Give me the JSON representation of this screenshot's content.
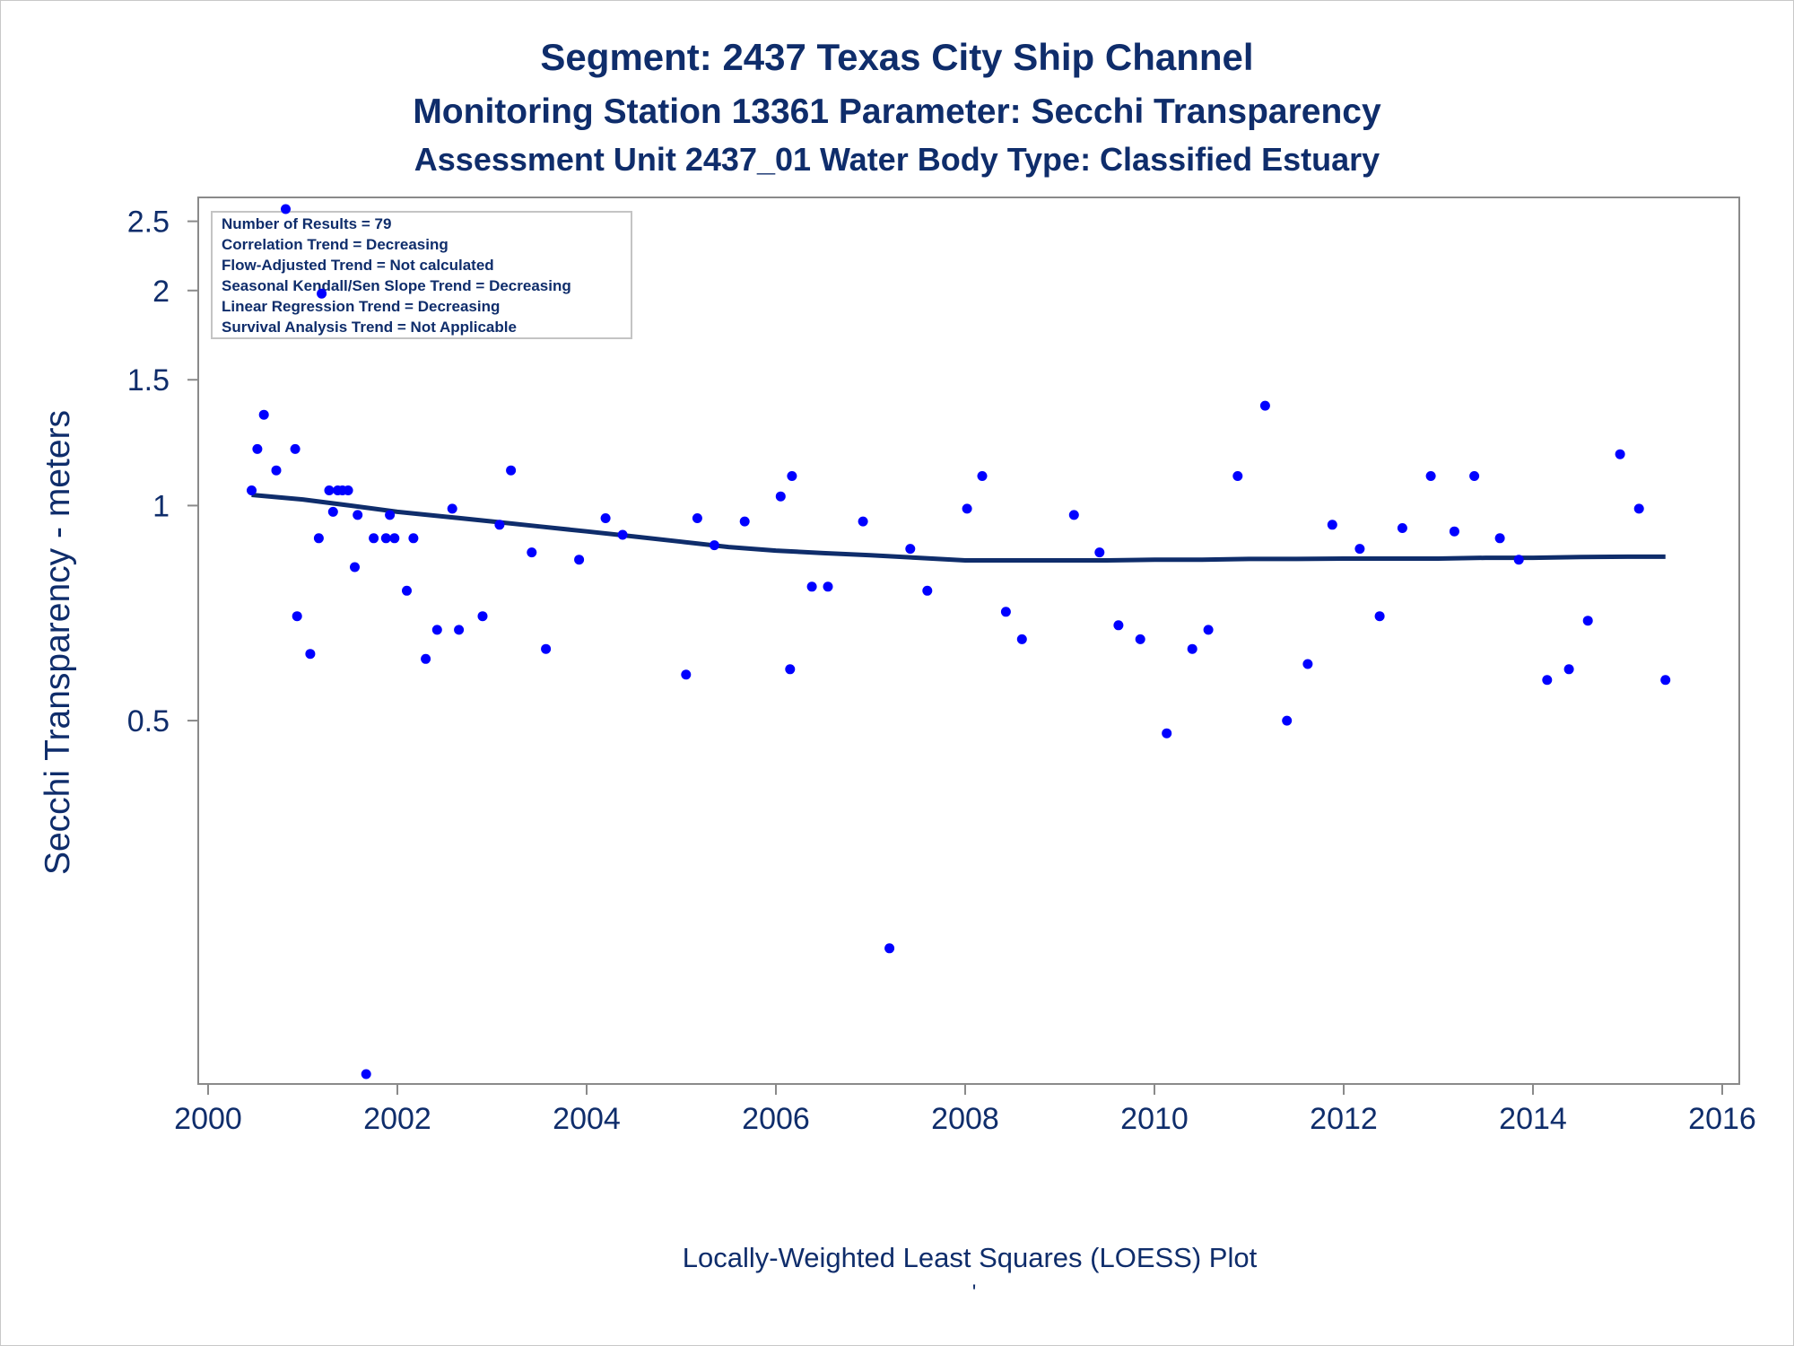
{
  "chart_data": {
    "type": "scatter",
    "title": "Segment: 2437  Texas City Ship Channel",
    "subtitle": "Monitoring Station 13361 Parameter: Secchi Transparency",
    "subtitle2": "Assessment Unit 2437_01   Water Body Type: Classified Estuary",
    "xlabel": "",
    "ylabel": "Secchi Transparency - meters",
    "footnote": "Locally-Weighted Least Squares (LOESS) Plot",
    "footnote_mark": "'",
    "x_ticks": [
      "2000",
      "2002",
      "2004",
      "2006",
      "2008",
      "2010",
      "2012",
      "2014",
      "2016"
    ],
    "y_ticks": [
      "0.5",
      "1",
      "1.5",
      "2",
      "2.5"
    ],
    "y_scale": "log",
    "xlim": [
      2000,
      2016
    ],
    "ylim": [
      0.155,
      2.7
    ],
    "grid": false,
    "colors": {
      "points": "#0000ff",
      "trend": "#0f2d6b",
      "text": "#0f2d6b",
      "axis": "#8a8a8a"
    },
    "stats_box": {
      "position": "top-left",
      "lines": [
        "Number of Results = 79",
        "Correlation Trend = Decreasing",
        "Flow-Adjusted Trend = Not calculated",
        "Seasonal Kendall/Sen Slope Trend = Decreasing",
        "Linear Regression Trend = Decreasing",
        "Survival Analysis Trend = Not Applicable"
      ]
    },
    "series": [
      {
        "kind": "points",
        "x": [
          2000.46,
          2000.52,
          2000.59,
          2000.72,
          2000.82,
          2000.92,
          2000.94,
          2001.08,
          2001.17,
          2001.2,
          2001.28,
          2001.32,
          2001.37,
          2001.42,
          2001.48,
          2001.55,
          2001.58,
          2001.67,
          2001.75,
          2001.88,
          2001.92,
          2001.97,
          2002.1,
          2002.17,
          2002.3,
          2002.42,
          2002.58,
          2002.65,
          2002.9,
          2003.08,
          2003.2,
          2003.42,
          2003.57,
          2003.92,
          2004.2,
          2004.38,
          2005.05,
          2005.17,
          2005.35,
          2005.67,
          2006.05,
          2006.15,
          2006.17,
          2006.38,
          2006.55,
          2006.92,
          2007.2,
          2007.42,
          2007.6,
          2008.02,
          2008.18,
          2008.43,
          2008.6,
          2009.15,
          2009.42,
          2009.62,
          2009.85,
          2010.13,
          2010.4,
          2010.57,
          2010.88,
          2011.17,
          2011.4,
          2011.62,
          2011.88,
          2012.17,
          2012.38,
          2012.62,
          2012.92,
          2013.17,
          2013.38,
          2013.65,
          2013.85,
          2014.15,
          2014.38,
          2014.58,
          2014.92,
          2015.12,
          2015.4
        ],
        "y": [
          1.05,
          1.2,
          1.34,
          1.12,
          2.6,
          1.2,
          0.7,
          0.62,
          0.9,
          1.98,
          1.05,
          0.98,
          1.05,
          1.05,
          1.05,
          0.82,
          0.97,
          0.16,
          0.9,
          0.9,
          0.97,
          0.9,
          0.76,
          0.9,
          0.61,
          0.67,
          0.99,
          0.67,
          0.7,
          0.94,
          1.12,
          0.86,
          0.63,
          0.84,
          0.96,
          0.91,
          0.58,
          0.96,
          0.88,
          0.95,
          1.03,
          0.59,
          1.1,
          0.77,
          0.77,
          0.95,
          0.24,
          0.87,
          0.76,
          0.99,
          1.1,
          0.71,
          0.65,
          0.97,
          0.86,
          0.68,
          0.65,
          0.48,
          0.63,
          0.67,
          1.1,
          1.38,
          0.5,
          0.6,
          0.94,
          0.87,
          0.7,
          0.93,
          1.1,
          0.92,
          1.1,
          0.9,
          0.84,
          0.57,
          0.59,
          0.69,
          1.18,
          0.99,
          0.57
        ]
      },
      {
        "kind": "loess",
        "x": [
          2000.46,
          2001.0,
          2001.5,
          2002.0,
          2002.5,
          2003.0,
          2003.5,
          2004.0,
          2004.5,
          2005.0,
          2005.5,
          2006.0,
          2006.5,
          2007.0,
          2007.5,
          2008.0,
          2008.5,
          2009.0,
          2009.5,
          2010.0,
          2010.5,
          2011.0,
          2011.5,
          2012.0,
          2012.5,
          2013.0,
          2013.5,
          2014.0,
          2014.5,
          2015.0,
          2015.4
        ],
        "y": [
          1.035,
          1.02,
          1.0,
          0.98,
          0.965,
          0.95,
          0.935,
          0.92,
          0.905,
          0.89,
          0.875,
          0.865,
          0.858,
          0.852,
          0.845,
          0.838,
          0.838,
          0.838,
          0.838,
          0.84,
          0.84,
          0.842,
          0.842,
          0.843,
          0.843,
          0.843,
          0.845,
          0.845,
          0.847,
          0.848,
          0.848
        ]
      }
    ]
  }
}
